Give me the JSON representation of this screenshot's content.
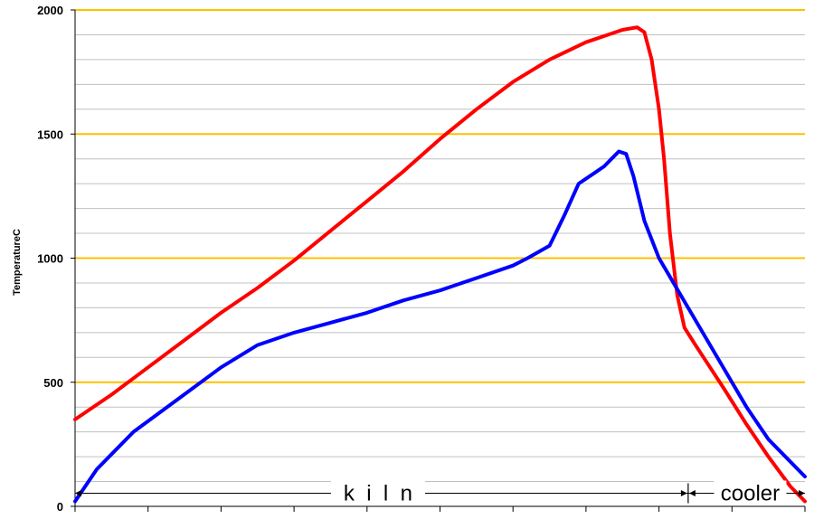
{
  "chart_data": {
    "type": "line",
    "title": "",
    "xlabel": "",
    "ylabel": "TemperatureC",
    "ylim": [
      0,
      2000
    ],
    "yticks": [
      0,
      500,
      1000,
      1500,
      2000
    ],
    "ytick_labels": [
      "0",
      "500",
      "1000",
      "1500",
      "2000"
    ],
    "minor_grid_step": 100,
    "grid": true,
    "major_grid_color": "#FFC000",
    "minor_grid_color": "#C0C0C0",
    "x_range": [
      0,
      100
    ],
    "x_minor_tick_count": 11,
    "series": [
      {
        "color": "#FF0000",
        "x": [
          0,
          5,
          10,
          15,
          20,
          25,
          30,
          35,
          40,
          45,
          50,
          55,
          60,
          65,
          70,
          73,
          75,
          77,
          78,
          79,
          80,
          80.7,
          81.5,
          82.5,
          83.5,
          85,
          87,
          89,
          92,
          95,
          98,
          100
        ],
        "y": [
          350,
          450,
          560,
          670,
          780,
          880,
          990,
          1110,
          1230,
          1350,
          1480,
          1600,
          1710,
          1800,
          1870,
          1900,
          1920,
          1930,
          1910,
          1800,
          1600,
          1400,
          1100,
          850,
          720,
          650,
          560,
          470,
          330,
          200,
          80,
          20
        ]
      },
      {
        "color": "#0000FF",
        "x": [
          0,
          3,
          8,
          14,
          20,
          25,
          30,
          35,
          40,
          45,
          50,
          55,
          60,
          62,
          65,
          67,
          69,
          71,
          72.5,
          73.5,
          74.5,
          75.5,
          76.5,
          78,
          80,
          83,
          86,
          89,
          92,
          95,
          100
        ],
        "y": [
          20,
          150,
          300,
          430,
          560,
          650,
          700,
          740,
          780,
          830,
          870,
          920,
          970,
          1000,
          1050,
          1170,
          1300,
          1340,
          1370,
          1400,
          1430,
          1420,
          1330,
          1150,
          1000,
          850,
          700,
          550,
          400,
          270,
          120
        ]
      }
    ],
    "segments": [
      {
        "label": "k  i  l  n",
        "x_from": 0,
        "x_to": 84
      },
      {
        "label": "cooler",
        "x_from": 84,
        "x_to": 100
      }
    ],
    "segment_baseline_value": 60
  }
}
